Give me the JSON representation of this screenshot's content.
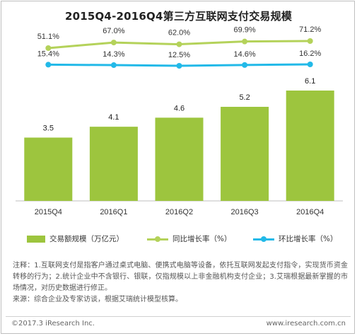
{
  "chart_data": {
    "type": "bar",
    "title": "2015Q4-2016Q4第三方互联网支付交易规模",
    "categories": [
      "2015Q4",
      "2016Q1",
      "2016Q2",
      "2016Q3",
      "2016Q4"
    ],
    "series": [
      {
        "name": "交易额规模（万亿元）",
        "type": "bar",
        "values": [
          3.5,
          4.1,
          4.6,
          5.2,
          6.1
        ],
        "labels": [
          "3.5",
          "4.1",
          "4.6",
          "5.2",
          "6.1"
        ],
        "color": "#9dc53e"
      },
      {
        "name": "同比增长率（%）",
        "type": "line",
        "values": [
          51.1,
          67.0,
          62.0,
          69.9,
          71.2
        ],
        "labels": [
          "51.1%",
          "67.0%",
          "62.0%",
          "69.9%",
          "71.2%"
        ],
        "color": "#b4d25a"
      },
      {
        "name": "环比增长率（%）",
        "type": "line",
        "values": [
          15.4,
          14.3,
          12.5,
          14.6,
          16.2
        ],
        "labels": [
          "15.4%",
          "14.3%",
          "12.5%",
          "14.6%",
          "16.2%"
        ],
        "color": "#22b9e8"
      }
    ],
    "bar_ylim": [
      0,
      6.1
    ],
    "grid": false,
    "legend": "bottom"
  },
  "notes": {
    "line1": "注释：1.互联网支付是指客户通过桌式电脑、便携式电脑等设备，依托互联网发起支付指令，实现货币资金转移的行为；2.统计企业中不含银行、银联，仅指规模以上非金融机构支付企业；3.艾瑞根据最新掌握的市场情况，对历史数据进行修正。",
    "line2": "来源：综合企业及专家访谈，根据艾瑞统计模型核算。"
  },
  "footer": {
    "copyright": "©2017.3 iResearch Inc.",
    "website": "www.iresearch.com.cn"
  }
}
